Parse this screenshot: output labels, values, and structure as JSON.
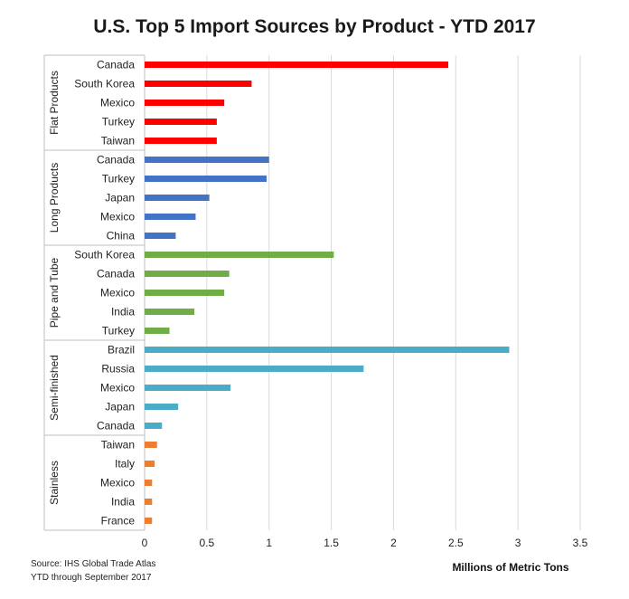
{
  "chart_data": {
    "type": "bar",
    "orientation": "horizontal",
    "title": "U.S. Top 5 Import Sources by Product - YTD 2017",
    "xlabel": "Millions of Metric Tons",
    "xlim": [
      0,
      3.5
    ],
    "xticks": [
      "0",
      "0.5",
      "1",
      "1.5",
      "2",
      "2.5",
      "3",
      "3.5"
    ],
    "grid": true,
    "groups": [
      {
        "name": "Flat Products",
        "color": "#ff0000",
        "items": [
          {
            "label": "Canada",
            "value": 2.44
          },
          {
            "label": "South Korea",
            "value": 0.86
          },
          {
            "label": "Mexico",
            "value": 0.64
          },
          {
            "label": "Turkey",
            "value": 0.58
          },
          {
            "label": "Taiwan",
            "value": 0.58
          }
        ]
      },
      {
        "name": "Long Products",
        "color": "#4472c4",
        "items": [
          {
            "label": "Canada",
            "value": 1.0
          },
          {
            "label": "Turkey",
            "value": 0.98
          },
          {
            "label": "Japan",
            "value": 0.52
          },
          {
            "label": "Mexico",
            "value": 0.41
          },
          {
            "label": "China",
            "value": 0.25
          }
        ]
      },
      {
        "name": "Pipe and Tube",
        "color": "#70ad47",
        "items": [
          {
            "label": "South Korea",
            "value": 1.52
          },
          {
            "label": "Canada",
            "value": 0.68
          },
          {
            "label": "Mexico",
            "value": 0.64
          },
          {
            "label": "India",
            "value": 0.4
          },
          {
            "label": "Turkey",
            "value": 0.2
          }
        ]
      },
      {
        "name": "Semi-finished",
        "color": "#4bacc6",
        "items": [
          {
            "label": "Brazil",
            "value": 2.93
          },
          {
            "label": "Russia",
            "value": 1.76
          },
          {
            "label": "Mexico",
            "value": 0.69
          },
          {
            "label": "Japan",
            "value": 0.27
          },
          {
            "label": "Canada",
            "value": 0.14
          }
        ]
      },
      {
        "name": "Stainless",
        "color": "#ed7d31",
        "items": [
          {
            "label": "Taiwan",
            "value": 0.1
          },
          {
            "label": "Italy",
            "value": 0.08
          },
          {
            "label": "Mexico",
            "value": 0.06
          },
          {
            "label": "India",
            "value": 0.06
          },
          {
            "label": "France",
            "value": 0.06
          }
        ]
      }
    ]
  },
  "footer": {
    "source_line1": "Source: IHS Global Trade Atlas",
    "source_line2": "YTD through September 2017"
  }
}
